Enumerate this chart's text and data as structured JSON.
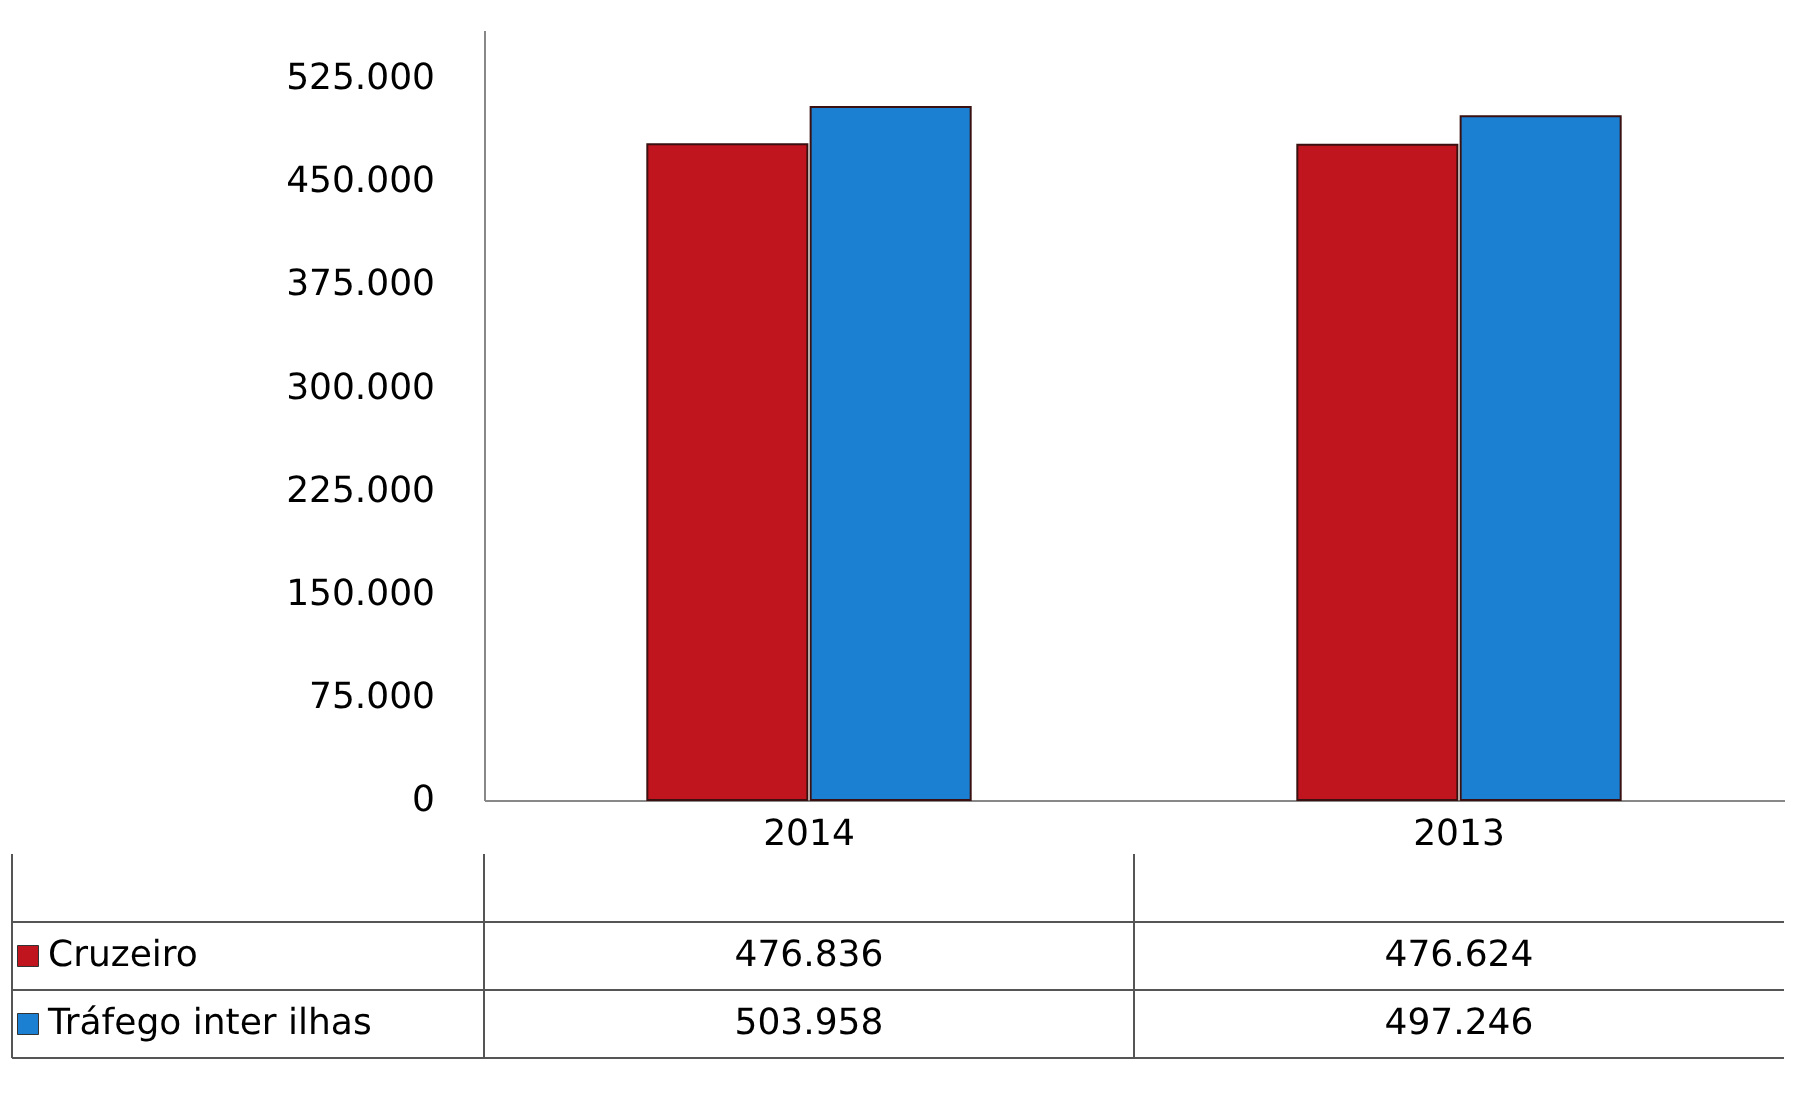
{
  "chart_data": {
    "type": "bar",
    "categories": [
      "2014",
      "2013"
    ],
    "series": [
      {
        "name": "Cruzeiro",
        "color": "#c0141e",
        "values": [
          476836,
          476624
        ],
        "value_labels": [
          "476.836",
          "476.624"
        ]
      },
      {
        "name": "Tráfego inter ilhas",
        "color": "#1b7fd2",
        "values": [
          503958,
          497246
        ],
        "value_labels": [
          "503.958",
          "497.246"
        ]
      }
    ],
    "ylim": [
      0,
      560000
    ],
    "yticks": [
      {
        "value": 0,
        "label": "0"
      },
      {
        "value": 75000,
        "label": "75.000"
      },
      {
        "value": 150000,
        "label": "150.000"
      },
      {
        "value": 225000,
        "label": "225.000"
      },
      {
        "value": 300000,
        "label": "300.000"
      },
      {
        "value": 375000,
        "label": "375.000"
      },
      {
        "value": 450000,
        "label": "450.000"
      },
      {
        "value": 525000,
        "label": "525.000"
      }
    ],
    "grid": false,
    "legend": "bottom"
  }
}
